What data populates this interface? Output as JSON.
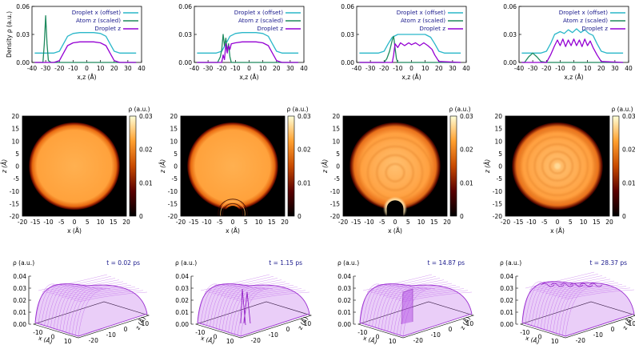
{
  "chart_data": [
    {
      "type": "line",
      "panel": "profile-1",
      "ylabel": "Density ρ (a.u.)",
      "xlabel": "x,z (Å)",
      "xlim": [
        -40,
        40
      ],
      "ylim": [
        0,
        0.06
      ],
      "yticks": [
        "0.00",
        "0.03",
        "0.06"
      ],
      "xticks": [
        "-40",
        "-30",
        "-20",
        "-10",
        "0",
        "10",
        "20",
        "30",
        "40"
      ],
      "legend": [
        "Droplet x (offset)",
        "Atom z (scaled)",
        "Droplet z"
      ],
      "series": [
        {
          "name": "Droplet x (offset)",
          "color": "#2ab7c9",
          "x": [
            -38,
            -24,
            -20,
            -17,
            -14,
            -10,
            -5,
            0,
            5,
            10,
            14,
            17,
            20,
            24,
            36
          ],
          "y": [
            0.01,
            0.01,
            0.012,
            0.02,
            0.028,
            0.031,
            0.032,
            0.032,
            0.032,
            0.031,
            0.028,
            0.02,
            0.012,
            0.01,
            0.01
          ]
        },
        {
          "name": "Atom z (scaled)",
          "color": "#1e8a5e",
          "x": [
            -38,
            -32,
            -31,
            -30,
            -29,
            -28,
            -26,
            -20,
            -10,
            0,
            10,
            20,
            36
          ],
          "y": [
            0.0,
            0.0,
            0.02,
            0.05,
            0.02,
            0.002,
            0.0,
            0.0,
            0.0,
            0.0,
            0.0,
            0.0,
            0.0
          ]
        },
        {
          "name": "Droplet z",
          "color": "#9400d3",
          "x": [
            -38,
            -24,
            -20,
            -17,
            -14,
            -10,
            -5,
            0,
            5,
            10,
            14,
            17,
            20,
            24,
            36
          ],
          "y": [
            0.0,
            0.0,
            0.002,
            0.01,
            0.018,
            0.021,
            0.022,
            0.022,
            0.022,
            0.021,
            0.018,
            0.01,
            0.002,
            0.0,
            0.0
          ]
        }
      ]
    },
    {
      "type": "line",
      "panel": "profile-2",
      "xlabel": "x,z (Å)",
      "xlim": [
        -40,
        40
      ],
      "ylim": [
        0,
        0.06
      ],
      "yticks": [
        "0.00",
        "0.03",
        "0.06"
      ],
      "xticks": [
        "-40",
        "-30",
        "-20",
        "-10",
        "0",
        "10",
        "20",
        "30",
        "40"
      ],
      "legend": [
        "Droplet x (offset)",
        "Atom z (scaled)",
        "Droplet z"
      ],
      "series": [
        {
          "name": "Droplet x (offset)",
          "color": "#2ab7c9",
          "x": [
            -38,
            -24,
            -20,
            -17,
            -14,
            -10,
            -5,
            0,
            5,
            10,
            14,
            17,
            20,
            24,
            36
          ],
          "y": [
            0.01,
            0.01,
            0.012,
            0.02,
            0.028,
            0.031,
            0.032,
            0.032,
            0.032,
            0.031,
            0.028,
            0.02,
            0.012,
            0.01,
            0.01
          ]
        },
        {
          "name": "Atom z (scaled)",
          "color": "#1e8a5e",
          "x": [
            -38,
            -23,
            -21,
            -20,
            -19,
            -18,
            -17,
            -16,
            -15,
            -14,
            -13,
            -10,
            0,
            36
          ],
          "y": [
            0.0,
            0.0,
            0.006,
            0.014,
            0.03,
            0.018,
            0.026,
            0.012,
            0.02,
            0.006,
            0.0,
            0.0,
            0.0,
            0.0
          ]
        },
        {
          "name": "Droplet z",
          "color": "#9400d3",
          "x": [
            -38,
            -20,
            -19,
            -18,
            -17,
            -16,
            -15,
            -14,
            -13,
            -10,
            -5,
            0,
            5,
            10,
            14,
            17,
            20,
            24,
            36
          ],
          "y": [
            0.0,
            0.0,
            0.008,
            0.003,
            0.02,
            0.01,
            0.018,
            0.014,
            0.02,
            0.021,
            0.022,
            0.022,
            0.022,
            0.021,
            0.018,
            0.01,
            0.002,
            0.0,
            0.0
          ]
        }
      ]
    },
    {
      "type": "line",
      "panel": "profile-3",
      "xlabel": "x,z (Å)",
      "xlim": [
        -40,
        40
      ],
      "ylim": [
        0,
        0.06
      ],
      "yticks": [
        "0.00",
        "0.03",
        "0.06"
      ],
      "xticks": [
        "-40",
        "-30",
        "-20",
        "-10",
        "0",
        "10",
        "20",
        "30",
        "40"
      ],
      "legend": [
        "Droplet x (offset)",
        "Atom z (scaled)",
        "Droplet z"
      ],
      "series": [
        {
          "name": "Droplet x (offset)",
          "color": "#2ab7c9",
          "x": [
            -38,
            -24,
            -20,
            -17,
            -14,
            -10,
            -5,
            0,
            5,
            10,
            14,
            17,
            20,
            24,
            36
          ],
          "y": [
            0.01,
            0.01,
            0.012,
            0.02,
            0.027,
            0.03,
            0.03,
            0.03,
            0.03,
            0.03,
            0.027,
            0.02,
            0.012,
            0.01,
            0.01
          ]
        },
        {
          "name": "Atom z (scaled)",
          "color": "#1e8a5e",
          "x": [
            -38,
            -20,
            -18,
            -16,
            -14,
            -13,
            -12,
            -11,
            -10,
            0,
            36
          ],
          "y": [
            0.0,
            0.0,
            0.004,
            0.012,
            0.024,
            0.028,
            0.016,
            0.004,
            0.0,
            0.0,
            0.0
          ]
        },
        {
          "name": "Droplet z",
          "color": "#9400d3",
          "x": [
            -38,
            -14,
            -13,
            -12,
            -10,
            -8,
            -5,
            -2,
            0,
            3,
            6,
            9,
            12,
            15,
            17,
            20,
            36
          ],
          "y": [
            0.0,
            0.0,
            0.008,
            0.02,
            0.016,
            0.021,
            0.018,
            0.021,
            0.019,
            0.021,
            0.018,
            0.021,
            0.018,
            0.014,
            0.008,
            0.001,
            0.0
          ]
        }
      ]
    },
    {
      "type": "line",
      "panel": "profile-4",
      "xlabel": "x,z (Å)",
      "xlim": [
        -40,
        40
      ],
      "ylim": [
        0,
        0.06
      ],
      "yticks": [
        "0.00",
        "0.03",
        "0.06"
      ],
      "xticks": [
        "-40",
        "-30",
        "-20",
        "-10",
        "0",
        "10",
        "20",
        "30",
        "40"
      ],
      "legend": [
        "Droplet x (offset)",
        "Atom z (scaled)",
        "Droplet z"
      ],
      "series": [
        {
          "name": "Droplet x (offset)",
          "color": "#2ab7c9",
          "x": [
            -38,
            -24,
            -20,
            -17,
            -14,
            -10,
            -7,
            -4,
            -1,
            2,
            5,
            8,
            11,
            14,
            17,
            20,
            24,
            36
          ],
          "y": [
            0.01,
            0.01,
            0.012,
            0.02,
            0.03,
            0.033,
            0.031,
            0.035,
            0.032,
            0.036,
            0.032,
            0.035,
            0.031,
            0.029,
            0.02,
            0.012,
            0.01,
            0.01
          ]
        },
        {
          "name": "Atom z (scaled)",
          "color": "#1e8a5e",
          "x": [
            -38,
            -36,
            -33,
            -30,
            -27,
            -24,
            -20,
            0,
            36
          ],
          "y": [
            0.0,
            0.0,
            0.006,
            0.01,
            0.006,
            0.001,
            0.0,
            0.0,
            0.0
          ]
        },
        {
          "name": "Droplet z",
          "color": "#9400d3",
          "x": [
            -38,
            -20,
            -17,
            -14,
            -12,
            -10,
            -8,
            -6,
            -4,
            -2,
            0,
            2,
            4,
            6,
            8,
            10,
            12,
            14,
            17,
            20,
            36
          ],
          "y": [
            0.0,
            0.0,
            0.008,
            0.018,
            0.024,
            0.018,
            0.025,
            0.017,
            0.024,
            0.018,
            0.025,
            0.018,
            0.024,
            0.017,
            0.025,
            0.018,
            0.023,
            0.016,
            0.008,
            0.001,
            0.0
          ]
        }
      ]
    },
    {
      "type": "heatmap",
      "panel": "density-map-1",
      "xlabel": "x (Å)",
      "ylabel": "z (Å)",
      "xlim": [
        -20,
        20
      ],
      "ylim": [
        -20,
        20
      ],
      "xticks": [
        "-20",
        "-15",
        "-10",
        "-5",
        "0",
        "5",
        "10",
        "15",
        "20"
      ],
      "yticks": [
        "-20",
        "-15",
        "-10",
        "-5",
        "0",
        "5",
        "10",
        "15",
        "20"
      ],
      "colorbar_label": "ρ (a.u.)",
      "colorbar_ticks": [
        "0",
        "0.01",
        "0.02",
        "0.03"
      ],
      "droplet_radius": 17.5,
      "cavity": null,
      "ripple": "none"
    },
    {
      "type": "heatmap",
      "panel": "density-map-2",
      "xlabel": "x (Å)",
      "ylabel": "z (Å)",
      "xlim": [
        -20,
        20
      ],
      "ylim": [
        -20,
        20
      ],
      "xticks": [
        "-20",
        "-15",
        "-10",
        "-5",
        "0",
        "5",
        "10",
        "15",
        "20"
      ],
      "yticks": [
        "-20",
        "-15",
        "-10",
        "-5",
        "0",
        "5",
        "10",
        "15",
        "20"
      ],
      "colorbar_label": "ρ (a.u.)",
      "colorbar_ticks": [
        "0",
        "0.01",
        "0.02",
        "0.03"
      ],
      "droplet_radius": 17.5,
      "cavity": {
        "x": 0,
        "z": -19,
        "r": 3
      },
      "ripple": "rings"
    },
    {
      "type": "heatmap",
      "panel": "density-map-3",
      "xlabel": "x (Å)",
      "ylabel": "z (Å)",
      "xlim": [
        -20,
        20
      ],
      "ylim": [
        -20,
        20
      ],
      "xticks": [
        "-20",
        "-15",
        "-10",
        "-5",
        "0",
        "5",
        "10",
        "15",
        "20"
      ],
      "yticks": [
        "-20",
        "-15",
        "-10",
        "-5",
        "0",
        "5",
        "10",
        "15",
        "20"
      ],
      "colorbar_label": "ρ (a.u.)",
      "colorbar_ticks": [
        "0",
        "0.01",
        "0.02",
        "0.03"
      ],
      "droplet_radius": 17.5,
      "cavity": {
        "x": 0,
        "z": -17,
        "r": 3.2
      },
      "ripple": "mottled"
    },
    {
      "type": "heatmap",
      "panel": "density-map-4",
      "xlabel": "x (Å)",
      "ylabel": "z (Å)",
      "xlim": [
        -20,
        20
      ],
      "ylim": [
        -20,
        20
      ],
      "xticks": [
        "-20",
        "-15",
        "-10",
        "-5",
        "0",
        "5",
        "10",
        "15",
        "20"
      ],
      "yticks": [
        "-20",
        "-15",
        "-10",
        "-5",
        "0",
        "5",
        "10",
        "15",
        "20"
      ],
      "colorbar_label": "ρ (a.u.)",
      "colorbar_ticks": [
        "0",
        "0.01",
        "0.02",
        "0.03"
      ],
      "droplet_radius": 17.5,
      "cavity": null,
      "ripple": "concentric"
    },
    {
      "type": "surface",
      "panel": "surface-1",
      "time_label": "t =  0.02 ps",
      "zlabel": "ρ (a.u.)",
      "zticks": [
        "0.00",
        "0.01",
        "0.02",
        "0.03",
        "0.04"
      ],
      "xlabel": "x (Å)",
      "xticks": [
        "-10",
        "0",
        "10"
      ],
      "ylabel": "z (Å)",
      "yticks": [
        "-20",
        "-10",
        "0",
        "10"
      ],
      "peak": 0.032,
      "feature": "smooth"
    },
    {
      "type": "surface",
      "panel": "surface-2",
      "time_label": "t =  1.15 ps",
      "zlabel": "ρ (a.u.)",
      "zticks": [
        "0.00",
        "0.01",
        "0.02",
        "0.03",
        "0.04"
      ],
      "xlabel": "x (Å)",
      "xticks": [
        "-10",
        "0",
        "10"
      ],
      "ylabel": "z (Å)",
      "yticks": [
        "-20",
        "-10",
        "0",
        "10"
      ],
      "peak": 0.032,
      "feature": "entry-spike"
    },
    {
      "type": "surface",
      "panel": "surface-3",
      "time_label": "t = 14.87 ps",
      "zlabel": "ρ (a.u.)",
      "zticks": [
        "0.00",
        "0.01",
        "0.02",
        "0.03",
        "0.04"
      ],
      "xlabel": "x (Å)",
      "xticks": [
        "-10",
        "0",
        "10"
      ],
      "ylabel": "z (Å)",
      "yticks": [
        "-20",
        "-10",
        "0",
        "10"
      ],
      "peak": 0.032,
      "feature": "cavity-wake"
    },
    {
      "type": "surface",
      "panel": "surface-4",
      "time_label": "t = 28.37 ps",
      "zlabel": "ρ (a.u.)",
      "zticks": [
        "0.00",
        "0.01",
        "0.02",
        "0.03",
        "0.04"
      ],
      "xlabel": "x (Å)",
      "xticks": [
        "-10",
        "0",
        "10"
      ],
      "ylabel": "z (Å)",
      "yticks": [
        "-20",
        "-10",
        "0",
        "10"
      ],
      "peak": 0.034,
      "feature": "rippled"
    }
  ],
  "colors": {
    "axis": "#000000",
    "legend_text": "#1a1a8c",
    "time_text": "#1a1a8c",
    "surface": "#b44ee6"
  }
}
